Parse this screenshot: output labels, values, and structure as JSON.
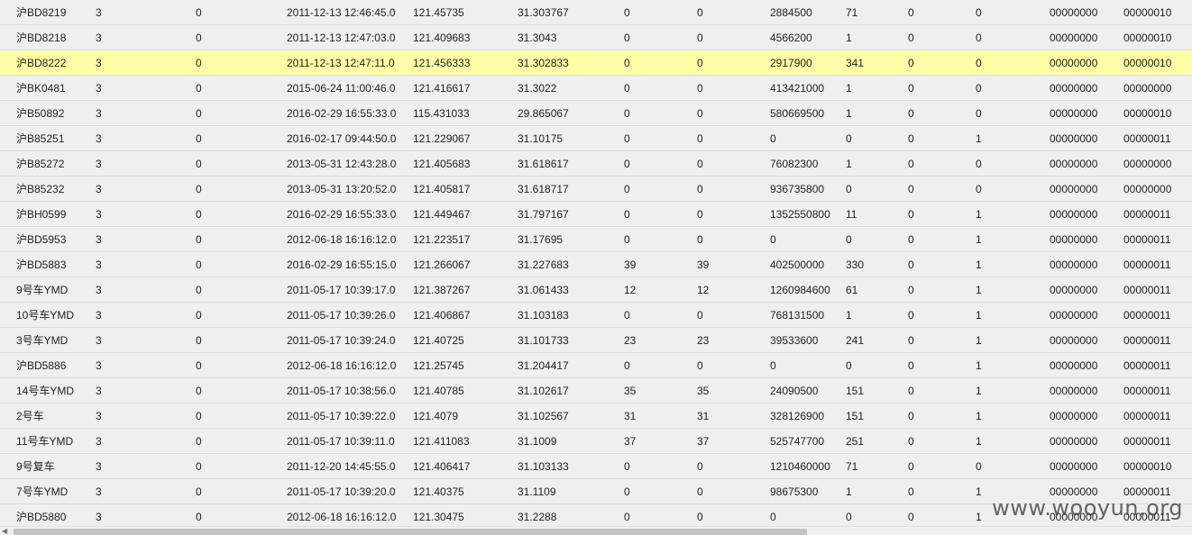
{
  "table": {
    "highlight_row": 2,
    "rows": [
      [
        "沪BD8219",
        "3",
        "0",
        "2011-12-13 12:46:45.0",
        "121.45735",
        "31.303767",
        "0",
        "0",
        "2884500",
        "71",
        "0",
        "0",
        "00000000",
        "00000010"
      ],
      [
        "沪BD8218",
        "3",
        "0",
        "2011-12-13 12:47:03.0",
        "121.409683",
        "31.3043",
        "0",
        "0",
        "4566200",
        "1",
        "0",
        "0",
        "00000000",
        "00000010"
      ],
      [
        "沪BD8222",
        "3",
        "0",
        "2011-12-13 12:47:11.0",
        "121.456333",
        "31.302833",
        "0",
        "0",
        "2917900",
        "341",
        "0",
        "0",
        "00000000",
        "00000010"
      ],
      [
        "沪BK0481",
        "3",
        "0",
        "2015-06-24 11:00:46.0",
        "121.416617",
        "31.3022",
        "0",
        "0",
        "413421000",
        "1",
        "0",
        "0",
        "00000000",
        "00000000"
      ],
      [
        "沪B50892",
        "3",
        "0",
        "2016-02-29 16:55:33.0",
        "115.431033",
        "29.865067",
        "0",
        "0",
        "580669500",
        "1",
        "0",
        "0",
        "00000000",
        "00000010"
      ],
      [
        "沪B85251",
        "3",
        "0",
        "2016-02-17 09:44:50.0",
        "121.229067",
        "31.10175",
        "0",
        "0",
        "0",
        "0",
        "0",
        "1",
        "00000000",
        "00000011"
      ],
      [
        "沪B85272",
        "3",
        "0",
        "2013-05-31 12:43:28.0",
        "121.405683",
        "31.618617",
        "0",
        "0",
        "76082300",
        "1",
        "0",
        "0",
        "00000000",
        "00000000"
      ],
      [
        "沪B85232",
        "3",
        "0",
        "2013-05-31 13:20:52.0",
        "121.405817",
        "31.618717",
        "0",
        "0",
        "936735800",
        "0",
        "0",
        "0",
        "00000000",
        "00000000"
      ],
      [
        "沪BH0599",
        "3",
        "0",
        "2016-02-29 16:55:33.0",
        "121.449467",
        "31.797167",
        "0",
        "0",
        "1352550800",
        "11",
        "0",
        "1",
        "00000000",
        "00000011"
      ],
      [
        "沪BD5953",
        "3",
        "0",
        "2012-06-18 16:16:12.0",
        "121.223517",
        "31.17695",
        "0",
        "0",
        "0",
        "0",
        "0",
        "1",
        "00000000",
        "00000011"
      ],
      [
        "沪BD5883",
        "3",
        "0",
        "2016-02-29 16:55:15.0",
        "121.266067",
        "31.227683",
        "39",
        "39",
        "402500000",
        "330",
        "0",
        "1",
        "00000000",
        "00000011"
      ],
      [
        "9号车YMD",
        "3",
        "0",
        "2011-05-17 10:39:17.0",
        "121.387267",
        "31.061433",
        "12",
        "12",
        "1260984600",
        "61",
        "0",
        "1",
        "00000000",
        "00000011"
      ],
      [
        "10号车YMD",
        "3",
        "0",
        "2011-05-17 10:39:26.0",
        "121.406867",
        "31.103183",
        "0",
        "0",
        "768131500",
        "1",
        "0",
        "1",
        "00000000",
        "00000011"
      ],
      [
        "3号车YMD",
        "3",
        "0",
        "2011-05-17 10:39:24.0",
        "121.40725",
        "31.101733",
        "23",
        "23",
        "39533600",
        "241",
        "0",
        "1",
        "00000000",
        "00000011"
      ],
      [
        "沪BD5886",
        "3",
        "0",
        "2012-06-18 16:16:12.0",
        "121.25745",
        "31.204417",
        "0",
        "0",
        "0",
        "0",
        "0",
        "1",
        "00000000",
        "00000011"
      ],
      [
        "14号车YMD",
        "3",
        "0",
        "2011-05-17 10:38:56.0",
        "121.40785",
        "31.102617",
        "35",
        "35",
        "24090500",
        "151",
        "0",
        "1",
        "00000000",
        "00000011"
      ],
      [
        "2号车",
        "3",
        "0",
        "2011-05-17 10:39:22.0",
        "121.4079",
        "31.102567",
        "31",
        "31",
        "328126900",
        "151",
        "0",
        "1",
        "00000000",
        "00000011"
      ],
      [
        "11号车YMD",
        "3",
        "0",
        "2011-05-17 10:39:11.0",
        "121.411083",
        "31.1009",
        "37",
        "37",
        "525747700",
        "251",
        "0",
        "1",
        "00000000",
        "00000011"
      ],
      [
        "9号复车",
        "3",
        "0",
        "2011-12-20 14:45:55.0",
        "121.406417",
        "31.103133",
        "0",
        "0",
        "1210460000",
        "71",
        "0",
        "0",
        "00000000",
        "00000010"
      ],
      [
        "7号车YMD",
        "3",
        "0",
        "2011-05-17 10:39:20.0",
        "121.40375",
        "31.1109",
        "0",
        "0",
        "98675300",
        "1",
        "0",
        "1",
        "00000000",
        "00000011"
      ],
      [
        "沪BD5880",
        "3",
        "0",
        "2012-06-18 16:16:12.0",
        "121.30475",
        "31.2288",
        "0",
        "0",
        "0",
        "0",
        "0",
        "1",
        "00000000",
        "00000011"
      ]
    ]
  },
  "watermark": "www.wooyun.org",
  "colors": {
    "row_background": "#efefef",
    "highlight_background": "#fefea6",
    "row_divider": "#dcdcdc"
  },
  "icons": {
    "scroll_left": "left-triangle-arrow"
  }
}
